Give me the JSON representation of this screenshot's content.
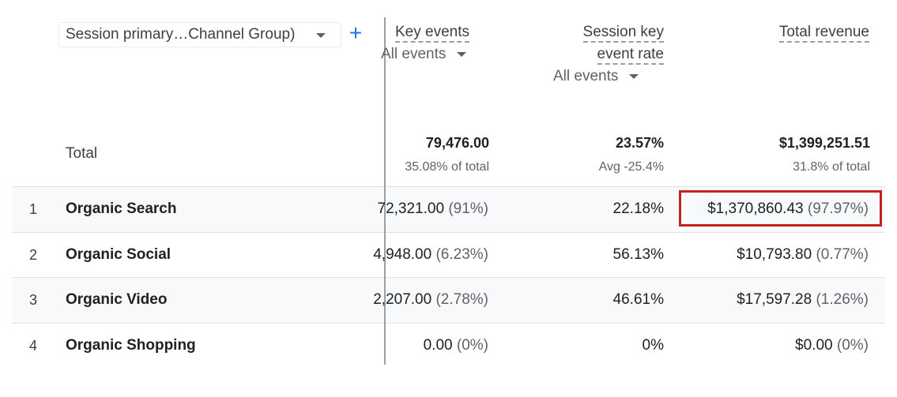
{
  "dimension": {
    "label": "Session primary…Channel Group)",
    "add_label": "+"
  },
  "columns": {
    "key_events": {
      "title": "Key events",
      "filter": "All events"
    },
    "session_rate": {
      "title_line1": "Session key",
      "title_line2": "event rate",
      "filter": "All events"
    },
    "total_revenue": {
      "title": "Total revenue"
    }
  },
  "totals": {
    "label": "Total",
    "key_events": "79,476.00",
    "key_events_sub": "35.08% of total",
    "session_rate": "23.57%",
    "session_rate_sub": "Avg -25.4%",
    "revenue": "$1,399,251.51",
    "revenue_sub": "31.8% of total"
  },
  "rows": [
    {
      "rank": "1",
      "name": "Organic Search",
      "key_events": "72,321.00",
      "key_events_pct": "(91%)",
      "rate": "22.18%",
      "revenue": "$1,370,860.43",
      "revenue_pct": "(97.97%)"
    },
    {
      "rank": "2",
      "name": "Organic Social",
      "key_events": "4,948.00",
      "key_events_pct": "(6.23%)",
      "rate": "56.13%",
      "revenue": "$10,793.80",
      "revenue_pct": "(0.77%)"
    },
    {
      "rank": "3",
      "name": "Organic Video",
      "key_events": "2,207.00",
      "key_events_pct": "(2.78%)",
      "rate": "46.61%",
      "revenue": "$17,597.28",
      "revenue_pct": "(1.26%)"
    },
    {
      "rank": "4",
      "name": "Organic Shopping",
      "key_events": "0.00",
      "key_events_pct": "(0%)",
      "rate": "0%",
      "revenue": "$0.00",
      "revenue_pct": "(0%)"
    }
  ],
  "colors": {
    "highlight_border": "#c5221f",
    "accent": "#1a73e8"
  }
}
